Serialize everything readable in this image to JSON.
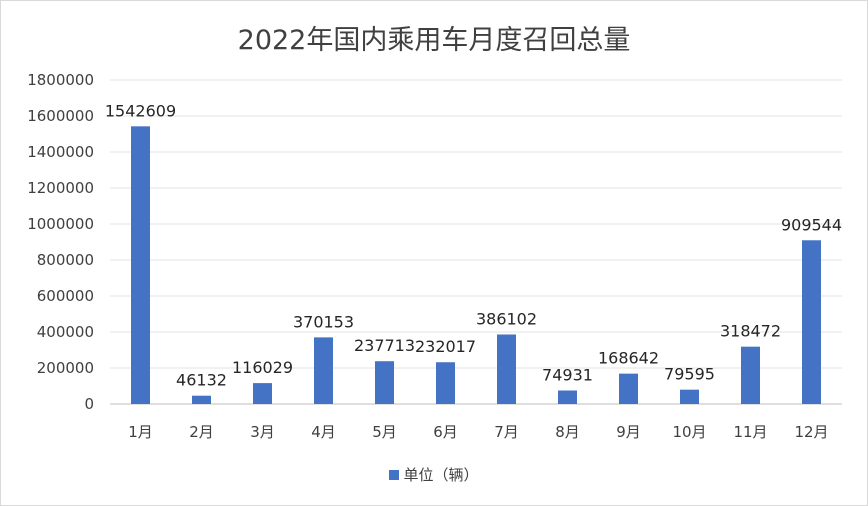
{
  "chart_data": {
    "type": "bar",
    "title": "2022年国内乘用车月度召回总量",
    "categories": [
      "1月",
      "2月",
      "3月",
      "4月",
      "5月",
      "6月",
      "7月",
      "8月",
      "9月",
      "10月",
      "11月",
      "12月"
    ],
    "series": [
      {
        "name": "单位（辆）",
        "values": [
          1542609,
          46132,
          116029,
          370153,
          237713,
          232017,
          386102,
          74931,
          168642,
          79595,
          318472,
          909544
        ],
        "color": "#4472c4"
      }
    ],
    "data_labels": [
      "1542609",
      "46132",
      "116029",
      "370153",
      "237713",
      "232017",
      "386102",
      "74931",
      "168642",
      "79595",
      "318472",
      "909544"
    ],
    "ylim": [
      0,
      1800000
    ],
    "yticks": [
      0,
      200000,
      400000,
      600000,
      800000,
      1000000,
      1200000,
      1400000,
      1600000,
      1800000
    ],
    "ytick_labels": [
      "0",
      "200000",
      "400000",
      "600000",
      "800000",
      "1000000",
      "1200000",
      "1400000",
      "1600000",
      "1800000"
    ],
    "grid": true,
    "legend_position": "bottom"
  }
}
